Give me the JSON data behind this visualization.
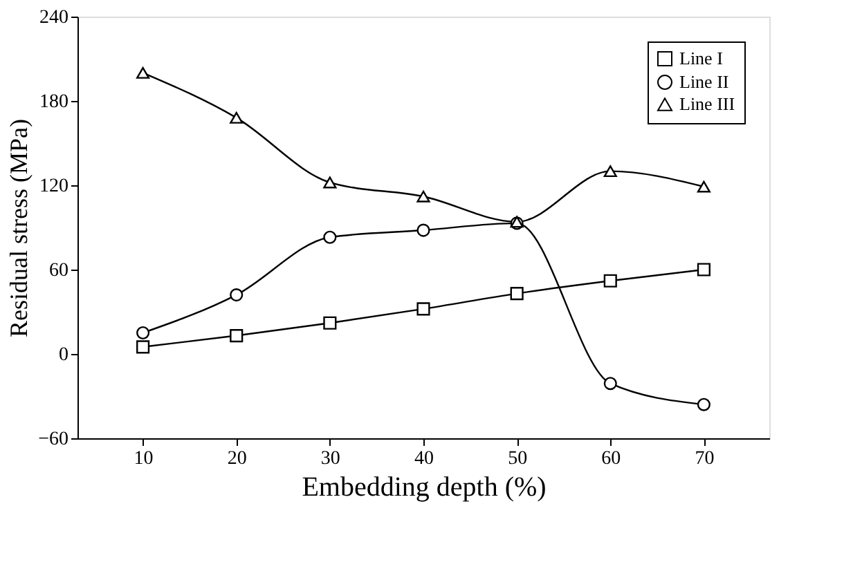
{
  "chart_data": {
    "type": "line",
    "xlabel": "Embedding depth (%)",
    "ylabel": "Residual stress (MPa)",
    "x": [
      10,
      20,
      30,
      40,
      50,
      60,
      70
    ],
    "xlim": [
      3,
      77
    ],
    "xticks": [
      10,
      20,
      30,
      40,
      50,
      60,
      70
    ],
    "ylim": [
      -60,
      240
    ],
    "yticks": [
      -60,
      0,
      60,
      120,
      180,
      240
    ],
    "grid": false,
    "legend": "top right",
    "line_style": "solid",
    "series": [
      {
        "name": "Line I",
        "color": "#000000",
        "marker": "square",
        "values": [
          5,
          13,
          22,
          32,
          43,
          52,
          60
        ]
      },
      {
        "name": "Line II",
        "color": "#000000",
        "marker": "circle",
        "values": [
          15,
          42,
          83,
          88,
          93,
          -21,
          -36
        ]
      },
      {
        "name": "Line III",
        "color": "#000000",
        "marker": "triangle",
        "values": [
          200,
          168,
          122,
          112,
          94,
          130,
          119
        ]
      }
    ]
  }
}
